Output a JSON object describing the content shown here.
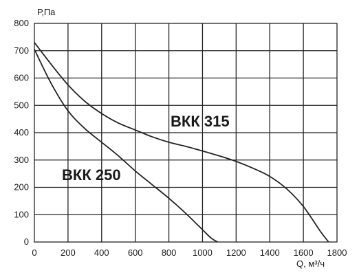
{
  "chart_data": {
    "type": "line",
    "xlabel": "Q, м³/ч",
    "ylabel": "Р,Па",
    "xlim": [
      0,
      1800
    ],
    "ylim": [
      0,
      800
    ],
    "grid": true,
    "x_ticks": [
      "0",
      "200",
      "400",
      "600",
      "800",
      "1000",
      "1200",
      "1400",
      "1600",
      "1800"
    ],
    "y_ticks": [
      "0",
      "100",
      "200",
      "300",
      "400",
      "500",
      "600",
      "700",
      "800"
    ],
    "series": [
      {
        "name": "ВКК 315",
        "x": [
          0,
          100,
          200,
          300,
          400,
          500,
          600,
          700,
          800,
          900,
          1000,
          1100,
          1200,
          1300,
          1400,
          1500,
          1600,
          1700,
          1750
        ],
        "y": [
          730,
          650,
          575,
          515,
          470,
          435,
          410,
          385,
          365,
          350,
          333,
          315,
          295,
          270,
          240,
          195,
          130,
          40,
          0
        ]
      },
      {
        "name": "ВКК 250",
        "x": [
          0,
          100,
          200,
          300,
          400,
          500,
          600,
          700,
          800,
          900,
          1000,
          1050,
          1090
        ],
        "y": [
          705,
          580,
          480,
          415,
          365,
          315,
          260,
          210,
          160,
          105,
          45,
          15,
          0
        ]
      }
    ]
  }
}
